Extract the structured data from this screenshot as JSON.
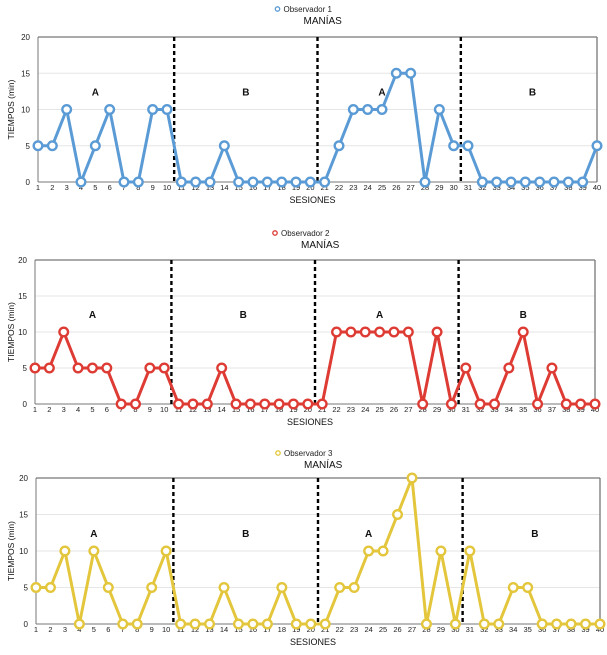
{
  "chart_data": [
    {
      "type": "line",
      "legend": "Observador 1",
      "title": "MANÍAS",
      "xlabel": "SESIONES",
      "ylabel": "TIEMPOS (min)",
      "color": "#5b9bd5",
      "ylim": [
        0,
        20
      ],
      "yticks": [
        0,
        5,
        10,
        15,
        20
      ],
      "grid": true,
      "legend_position": "top-center",
      "x": [
        1,
        2,
        3,
        4,
        5,
        6,
        7,
        8,
        9,
        10,
        11,
        12,
        13,
        14,
        15,
        16,
        17,
        18,
        19,
        20,
        21,
        22,
        23,
        24,
        25,
        26,
        27,
        28,
        29,
        30,
        31,
        32,
        33,
        34,
        35,
        36,
        37,
        38,
        39,
        40
      ],
      "values": [
        5,
        5,
        10,
        0,
        5,
        10,
        0,
        0,
        10,
        10,
        0,
        0,
        0,
        5,
        0,
        0,
        0,
        0,
        0,
        0,
        0,
        5,
        10,
        10,
        10,
        15,
        15,
        0,
        10,
        5,
        5,
        0,
        0,
        0,
        0,
        0,
        0,
        0,
        0,
        5
      ],
      "phase_changes": [
        10.5,
        20.5,
        30.5
      ],
      "phases": [
        {
          "label": "A",
          "x": 5
        },
        {
          "label": "B",
          "x": 15.5
        },
        {
          "label": "A",
          "x": 25
        },
        {
          "label": "B",
          "x": 35.5
        }
      ]
    },
    {
      "type": "line",
      "legend": "Observador 2",
      "title": "MANÍAS",
      "xlabel": "SESIONES",
      "ylabel": "TIEMPOS (min)",
      "color": "#dd3b33",
      "ylim": [
        0,
        20
      ],
      "yticks": [
        0,
        5,
        10,
        15,
        20
      ],
      "grid": true,
      "legend_position": "top-center",
      "x": [
        1,
        2,
        3,
        4,
        5,
        6,
        7,
        8,
        9,
        10,
        11,
        12,
        13,
        14,
        15,
        16,
        17,
        18,
        19,
        20,
        21,
        22,
        23,
        24,
        25,
        26,
        27,
        28,
        29,
        30,
        31,
        32,
        33,
        34,
        35,
        36,
        37,
        38,
        39,
        40
      ],
      "values": [
        5,
        5,
        10,
        5,
        5,
        5,
        0,
        0,
        5,
        5,
        0,
        0,
        0,
        5,
        0,
        0,
        0,
        0,
        0,
        0,
        0,
        10,
        10,
        10,
        10,
        10,
        10,
        0,
        10,
        0,
        5,
        0,
        0,
        5,
        10,
        0,
        5,
        0,
        0,
        0
      ],
      "phase_changes": [
        10.5,
        20.5,
        30.5
      ],
      "phases": [
        {
          "label": "A",
          "x": 5
        },
        {
          "label": "B",
          "x": 15.5
        },
        {
          "label": "A",
          "x": 25
        },
        {
          "label": "B",
          "x": 35
        }
      ]
    },
    {
      "type": "line",
      "legend": "Observador 3",
      "title": "MANÍAS",
      "xlabel": "SESIONES",
      "ylabel": "TIEMPOS (min)",
      "color": "#e3c63c",
      "ylim": [
        0,
        20
      ],
      "yticks": [
        0,
        5,
        10,
        15,
        20
      ],
      "grid": true,
      "legend_position": "top-center",
      "x": [
        1,
        2,
        3,
        4,
        5,
        6,
        7,
        8,
        9,
        10,
        11,
        12,
        13,
        14,
        15,
        16,
        17,
        18,
        19,
        20,
        21,
        22,
        23,
        24,
        25,
        26,
        27,
        28,
        29,
        30,
        31,
        32,
        33,
        34,
        35,
        36,
        37,
        38,
        39,
        40
      ],
      "values": [
        5,
        5,
        10,
        0,
        10,
        5,
        0,
        0,
        5,
        10,
        0,
        0,
        0,
        5,
        0,
        0,
        0,
        5,
        0,
        0,
        0,
        5,
        5,
        10,
        10,
        15,
        20,
        0,
        10,
        0,
        10,
        0,
        0,
        5,
        5,
        0,
        0,
        0,
        0,
        0
      ],
      "phase_changes": [
        10.5,
        20.5,
        30.5
      ],
      "phases": [
        {
          "label": "A",
          "x": 5
        },
        {
          "label": "B",
          "x": 15.5
        },
        {
          "label": "A",
          "x": 24
        },
        {
          "label": "B",
          "x": 35.5
        }
      ]
    }
  ]
}
